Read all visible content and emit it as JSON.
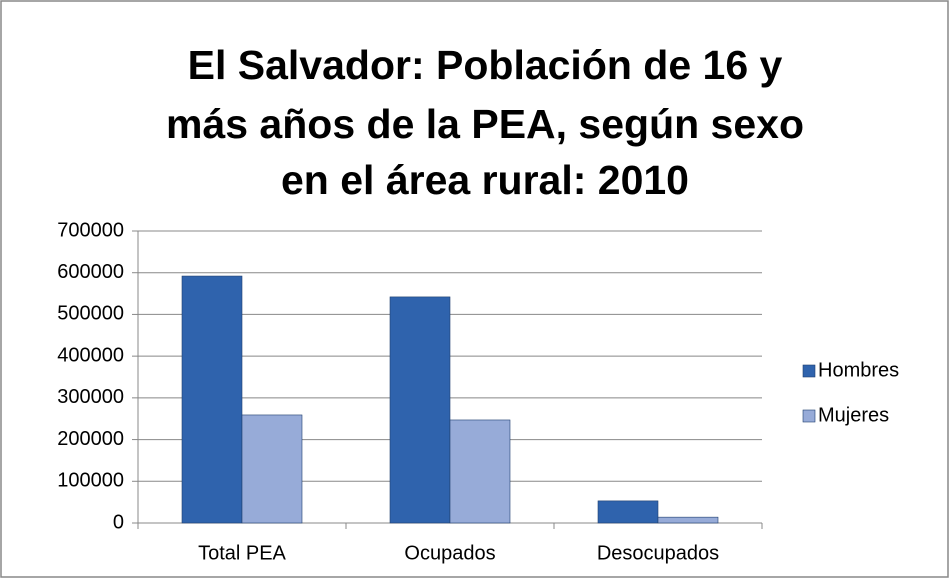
{
  "chart_data": {
    "type": "bar",
    "title": [
      "El Salvador: Población de 16 y",
      "más años de la PEA, según sexo",
      "en el área rural: 2010"
    ],
    "categories": [
      "Total PEA",
      "Ocupados",
      "Desocupados"
    ],
    "series": [
      {
        "name": "Hombres",
        "color": "#2f63ad",
        "values": [
          592000,
          542000,
          53000
        ]
      },
      {
        "name": "Mujeres",
        "color": "#97abd8",
        "values": [
          259000,
          247000,
          14000
        ]
      }
    ],
    "ylim": [
      0,
      700000
    ],
    "yticks": [
      0,
      100000,
      200000,
      300000,
      400000,
      500000,
      600000,
      700000
    ],
    "grid": true,
    "legend": "right"
  }
}
